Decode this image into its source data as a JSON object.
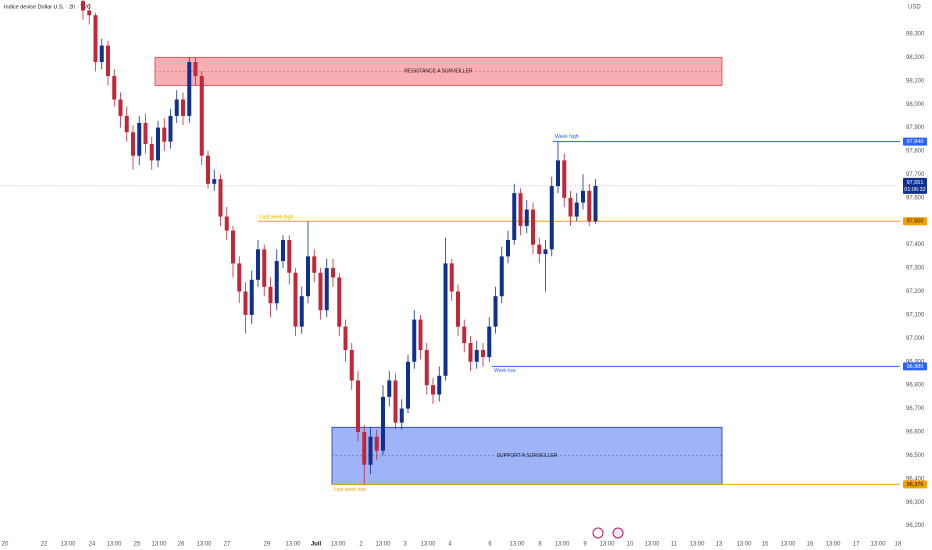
{
  "chart_data": {
    "type": "candlestick",
    "title": "Indice devise Dollar U.S. · 2h · TVC",
    "currency": "USD",
    "ylim": [
      96160,
      98445
    ],
    "yticks": [
      {
        "value": 96200,
        "label": "96,200"
      },
      {
        "value": 96300,
        "label": "96,300"
      },
      {
        "value": 96400,
        "label": "96,400"
      },
      {
        "value": 96500,
        "label": "96,500"
      },
      {
        "value": 96600,
        "label": "96,600"
      },
      {
        "value": 96700,
        "label": "96,700"
      },
      {
        "value": 96800,
        "label": "96,800"
      },
      {
        "value": 96900,
        "label": "96,900"
      },
      {
        "value": 97000,
        "label": "97,000"
      },
      {
        "value": 97100,
        "label": "97,100"
      },
      {
        "value": 97200,
        "label": "97,200"
      },
      {
        "value": 97300,
        "label": "97,300"
      },
      {
        "value": 97400,
        "label": "97,400"
      },
      {
        "value": 97500,
        "label": "97,500"
      },
      {
        "value": 97600,
        "label": "97,600"
      },
      {
        "value": 97700,
        "label": "97,700"
      },
      {
        "value": 97800,
        "label": "97,800"
      },
      {
        "value": 97900,
        "label": "97,900"
      },
      {
        "value": 98000,
        "label": "98,000"
      },
      {
        "value": 98100,
        "label": "98,100"
      },
      {
        "value": 98200,
        "label": "98,200"
      },
      {
        "value": 98300,
        "label": "98,300"
      }
    ],
    "xticks": [
      "20",
      "22",
      "13:00",
      "24",
      "13:00",
      "25",
      "13:00",
      "26",
      "13:00",
      "27",
      "29",
      "13:00",
      "Juil",
      "13:00",
      "2",
      "13:00",
      "3",
      "13:00",
      "4",
      "6",
      "13:00",
      "8",
      "13:00",
      "9",
      "13:00",
      "10",
      "13:00",
      "11",
      "13:00",
      "13",
      "13:00",
      "15",
      "13:00",
      "16",
      "13:00",
      "17",
      "13:00",
      "18"
    ],
    "up_color": "#10308f",
    "down_color": "#c0283a",
    "open": [
      98440,
      98400,
      98380,
      98180,
      98250,
      98120,
      98020,
      97950,
      97880,
      97780,
      97920,
      97830,
      97760,
      97900,
      97840,
      97950,
      98020,
      97950,
      98180,
      98120,
      97780,
      97660,
      97680,
      97520,
      97460,
      97320,
      97200,
      97100,
      97250,
      97380,
      97220,
      97150,
      97330,
      97420,
      97280,
      97050,
      97180,
      97350,
      97280,
      97120,
      97300,
      97260,
      97050,
      96950,
      96820,
      96600,
      96460,
      96580,
      96520,
      96750,
      96820,
      96640,
      96700,
      96900,
      97080,
      96950,
      96800,
      96760,
      96840,
      97320,
      97200,
      97050,
      96980,
      96900,
      96950,
      96920,
      97050,
      97180,
      97350,
      97420,
      97620,
      97480,
      97550,
      97400,
      97360,
      97380,
      97650,
      97760,
      97600,
      97520,
      97580,
      97630,
      97500
    ],
    "high": [
      98460,
      98430,
      98390,
      98280,
      98270,
      98150,
      98050,
      97990,
      97910,
      97950,
      97960,
      97860,
      97930,
      97940,
      97980,
      98060,
      98050,
      98200,
      98200,
      98140,
      97800,
      97720,
      97700,
      97560,
      97480,
      97350,
      97240,
      97290,
      97420,
      97400,
      97260,
      97380,
      97440,
      97440,
      97300,
      97220,
      97500,
      97380,
      97300,
      97340,
      97340,
      97280,
      97080,
      96980,
      96860,
      96630,
      96620,
      96610,
      96800,
      96860,
      96850,
      96740,
      96930,
      97120,
      97100,
      96980,
      96830,
      96880,
      97430,
      97340,
      97230,
      97080,
      97010,
      96990,
      96980,
      97090,
      97220,
      97390,
      97460,
      97660,
      97640,
      97590,
      97580,
      97430,
      97420,
      97690,
      97840,
      97790,
      97630,
      97620,
      97700,
      97660,
      97680
    ],
    "low": [
      98360,
      98340,
      98140,
      98150,
      98080,
      97990,
      97900,
      97840,
      97720,
      97740,
      97790,
      97720,
      97730,
      97800,
      97810,
      97920,
      97910,
      97920,
      98080,
      97740,
      97640,
      97630,
      97480,
      97420,
      97260,
      97150,
      97020,
      97060,
      97220,
      97180,
      97090,
      97120,
      97300,
      97230,
      97010,
      97020,
      97150,
      97240,
      97080,
      97090,
      97220,
      97010,
      96900,
      96780,
      96560,
      96376,
      96420,
      96480,
      96500,
      96710,
      96610,
      96610,
      96680,
      96870,
      96910,
      96760,
      96720,
      96730,
      96820,
      97160,
      97010,
      96940,
      96860,
      96870,
      96880,
      96900,
      97020,
      97150,
      97320,
      97400,
      97440,
      97450,
      97360,
      97320,
      97200,
      97350,
      97620,
      97560,
      97480,
      97500,
      97550,
      97480,
      97490
    ],
    "close": [
      98400,
      98380,
      98180,
      98250,
      98120,
      98020,
      97950,
      97880,
      97780,
      97920,
      97830,
      97760,
      97900,
      97840,
      97950,
      98020,
      97950,
      98180,
      98120,
      97780,
      97660,
      97680,
      97520,
      97460,
      97320,
      97200,
      97100,
      97250,
      97380,
      97220,
      97150,
      97330,
      97420,
      97280,
      97050,
      97180,
      97350,
      97280,
      97120,
      97300,
      97260,
      97050,
      96950,
      96820,
      96600,
      96460,
      96580,
      96520,
      96750,
      96820,
      96640,
      96700,
      96900,
      97080,
      96950,
      96800,
      96760,
      96840,
      97320,
      97200,
      97050,
      96980,
      96900,
      96950,
      96920,
      97050,
      97180,
      97350,
      97420,
      97620,
      97480,
      97550,
      97400,
      97360,
      97380,
      97650,
      97760,
      97600,
      97520,
      97580,
      97630,
      97500,
      97651
    ],
    "zones": [
      {
        "label": "RESISTANCE A SURVEILLER",
        "low": 98080,
        "high": 98200,
        "color": "#f7a1a6",
        "border": "#e0404b"
      },
      {
        "label": "SUPPORT A SURVEILLER",
        "low": 96376,
        "high": 96620,
        "color": "#8ea6f7",
        "border": "#1e3a9e"
      }
    ],
    "levels": [
      {
        "label": "Week high",
        "value": 97840,
        "value_label": "97,840",
        "color": "#2962ff"
      },
      {
        "label": "Last week high",
        "value": 97500,
        "value_label": "97,500",
        "color": "#f5a000"
      },
      {
        "label": "Week low",
        "value": 96880,
        "value_label": "96,880",
        "color": "#2962ff"
      },
      {
        "label": "Last week low",
        "value": 96376,
        "value_label": "96,376",
        "color": "#f5a000"
      }
    ],
    "last_price": {
      "value": 97651,
      "label": "97,651",
      "countdown": "01:06:32"
    }
  }
}
